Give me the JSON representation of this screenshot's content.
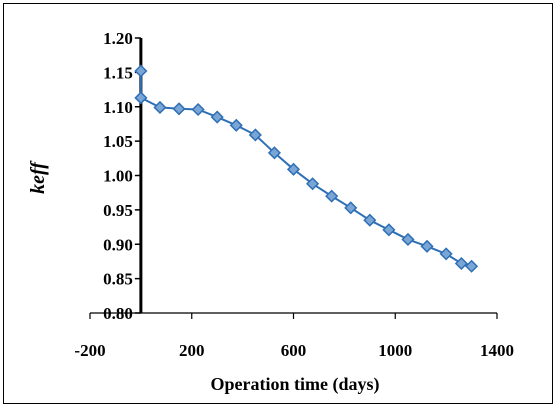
{
  "chart_data": {
    "type": "line",
    "xlabel": "Operation time (days)",
    "ylabel": "keff",
    "xlim": [
      -200,
      1400
    ],
    "ylim": [
      0.8,
      1.2
    ],
    "xticks": [
      "-200",
      "200",
      "600",
      "1000",
      "1400"
    ],
    "yticks": [
      "0.80",
      "0.85",
      "0.90",
      "0.95",
      "1.00",
      "1.05",
      "1.10",
      "1.15",
      "1.20"
    ],
    "grid": false,
    "legend": "none",
    "series_color": "#2e6fb5",
    "marker_fill": "#7aa6d6",
    "series": [
      {
        "x": [
          0,
          0,
          75,
          150,
          225,
          300,
          375,
          450,
          525,
          600,
          675,
          750,
          825,
          900,
          975,
          1050,
          1125,
          1200,
          1260,
          1300
        ],
        "y": [
          1.152,
          1.113,
          1.099,
          1.097,
          1.096,
          1.085,
          1.073,
          1.059,
          1.033,
          1.009,
          0.988,
          0.97,
          0.953,
          0.935,
          0.921,
          0.907,
          0.897,
          0.886,
          0.872,
          0.868
        ]
      }
    ]
  }
}
